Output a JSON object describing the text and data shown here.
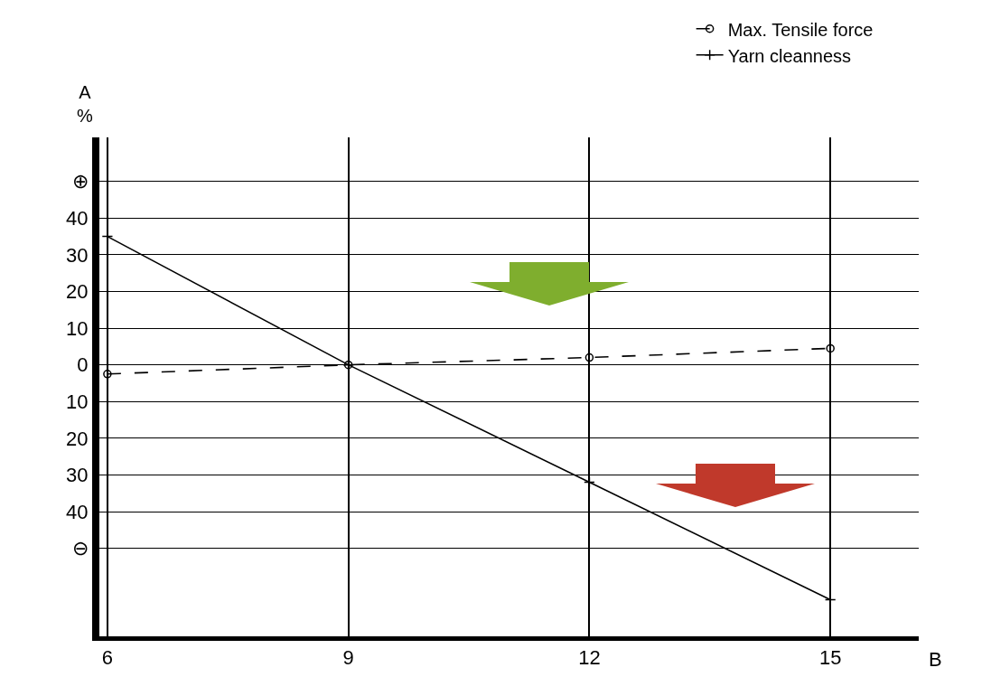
{
  "chart_data": {
    "type": "line",
    "xlabel": "B",
    "ylabel": "A %",
    "x": [
      6,
      9,
      12,
      15
    ],
    "series": [
      {
        "name": "Max. Tensile force",
        "color": "#000000",
        "values": [
          -2.5,
          0,
          2,
          4.5
        ],
        "marker": "circle",
        "line_style": "dashed"
      },
      {
        "name": "Yarn cleanness",
        "color": "#000000",
        "values": [
          35,
          0,
          -32,
          -64
        ],
        "marker": "cross",
        "line_style": "solid"
      }
    ],
    "xlim": [
      5.9,
      16.1
    ],
    "xticks": [
      6,
      9,
      12,
      15
    ],
    "ylim": [
      -74,
      62
    ],
    "yticks": [
      {
        "value": 50,
        "label": "⊕"
      },
      40,
      30,
      20,
      10,
      0,
      {
        "value": -10,
        "label": "10"
      },
      {
        "value": -20,
        "label": "20"
      },
      {
        "value": -30,
        "label": "30"
      },
      {
        "value": -40,
        "label": "40"
      },
      {
        "value": -50,
        "label": "⊖"
      }
    ],
    "grid": true,
    "legend": "top right"
  }
}
